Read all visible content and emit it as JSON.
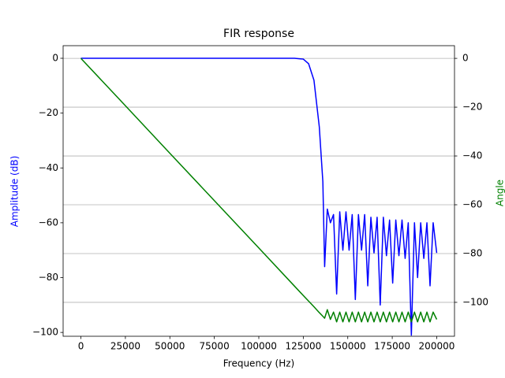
{
  "chart_data": {
    "type": "line",
    "title": "FIR response",
    "xlabel": "Frequency (Hz)",
    "ylabel": "Amplitude (dB)",
    "y2label": "Angle",
    "x": [
      0,
      25000,
      50000,
      75000,
      100000,
      120000,
      125000,
      128000,
      131000,
      134000,
      136000,
      137000,
      138500,
      140250,
      142000,
      143750,
      145500,
      147250,
      149000,
      150750,
      152500,
      154250,
      156000,
      157750,
      159500,
      161250,
      163000,
      164750,
      166500,
      168250,
      170000,
      171750,
      173500,
      175250,
      177000,
      178750,
      180500,
      182250,
      184000,
      185750,
      187500,
      189250,
      191000,
      192750,
      194500,
      196250,
      198000,
      200000
    ],
    "series": [
      {
        "name": "Amplitude (dB)",
        "color": "#0000ff",
        "axis": "y",
        "values": [
          0,
          0,
          0,
          0,
          0,
          0,
          -0.3,
          -2,
          -8,
          -25,
          -45,
          -76,
          -55,
          -60,
          -57,
          -86,
          -56,
          -70,
          -56,
          -70,
          -57,
          -88,
          -57,
          -70,
          -57,
          -83,
          -58,
          -71,
          -58,
          -90,
          -58,
          -72,
          -59,
          -82,
          -59,
          -72,
          -59,
          -73,
          -60,
          -101,
          -60,
          -80,
          -60,
          -73,
          -60,
          -83,
          -60,
          -71
        ]
      },
      {
        "name": "Angle",
        "color": "#008000",
        "axis": "y2",
        "values": [
          0,
          -19.4,
          -38.9,
          -58.3,
          -77.7,
          -93.3,
          -97.2,
          -99.5,
          -101.8,
          -104.2,
          -105.7,
          -106.5,
          -103,
          -107,
          -104,
          -108,
          -104,
          -108,
          -104,
          -108,
          -104,
          -108,
          -104,
          -108,
          -104,
          -108,
          -104,
          -108,
          -104,
          -108,
          -104,
          -108,
          -104,
          -108,
          -104,
          -108,
          -104,
          -108,
          -104,
          -108,
          -104,
          -108,
          -104,
          -108,
          -104,
          -108,
          -104,
          -107
        ]
      }
    ],
    "xlim": [
      -10000,
      210000
    ],
    "xticks": [
      0,
      25000,
      50000,
      75000,
      100000,
      125000,
      150000,
      175000,
      200000
    ],
    "ylim": [
      -101.4,
      4.6
    ],
    "yticks": [
      {
        "value": -100,
        "label": "−100"
      },
      {
        "value": -80,
        "label": "−80"
      },
      {
        "value": -60,
        "label": "−60"
      },
      {
        "value": -40,
        "label": "−40"
      },
      {
        "value": -20,
        "label": "−20"
      },
      0
    ],
    "y2lim": [
      -113.9,
      5.2
    ],
    "y2ticks": [
      {
        "value": -100,
        "label": "−100"
      },
      {
        "value": -80,
        "label": "−80"
      },
      {
        "value": -60,
        "label": "−60"
      },
      {
        "value": -40,
        "label": "−40"
      },
      {
        "value": -20,
        "label": "−20"
      },
      0
    ],
    "grid": "y2"
  }
}
